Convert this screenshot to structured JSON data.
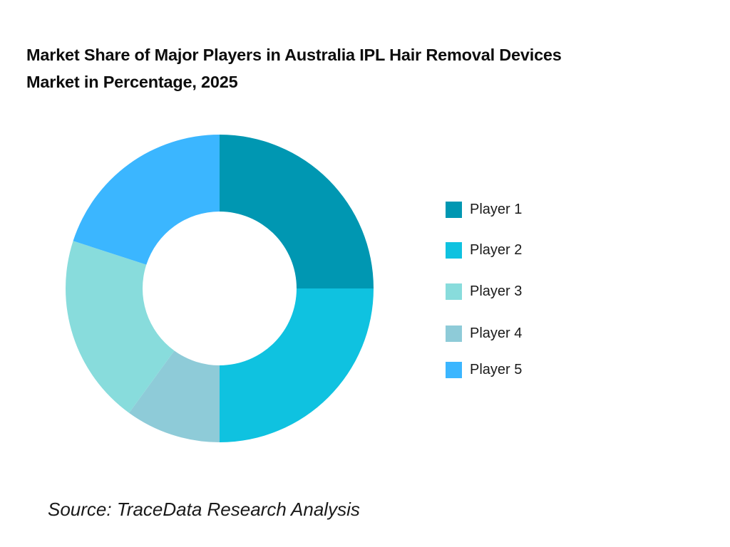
{
  "title": {
    "line1": "Market Share of Major Players in Australia IPL Hair Removal Devices",
    "line2": "Market in Percentage, 2025"
  },
  "legend": [
    {
      "label": "Player 1",
      "color": "#0097b2"
    },
    {
      "label": "Player 2",
      "color": "#0fc2e0"
    },
    {
      "label": "Player 3",
      "color": "#88dcdc"
    },
    {
      "label": "Player 4",
      "color": "#8ecbd8"
    },
    {
      "label": "Player 5",
      "color": "#3bb6ff"
    }
  ],
  "source": "Source: TraceData Research Analysis",
  "chart_data": {
    "type": "pie",
    "variant": "donut",
    "title": "Market Share of Major Players in Australia IPL Hair Removal Devices Market in Percentage, 2025",
    "categories": [
      "Player 1",
      "Player 2",
      "Player 3",
      "Player 4",
      "Player 5"
    ],
    "values": [
      25,
      25,
      20,
      10,
      20
    ],
    "colors": [
      "#0097b2",
      "#0fc2e0",
      "#88dcdc",
      "#8ecbd8",
      "#3bb6ff"
    ],
    "drawing_order_clockwise_from_top": [
      "Player 1",
      "Player 2",
      "Player 4",
      "Player 3",
      "Player 5"
    ],
    "legend_position": "right",
    "unit": "%",
    "source": "Source: TraceData Research Analysis"
  }
}
